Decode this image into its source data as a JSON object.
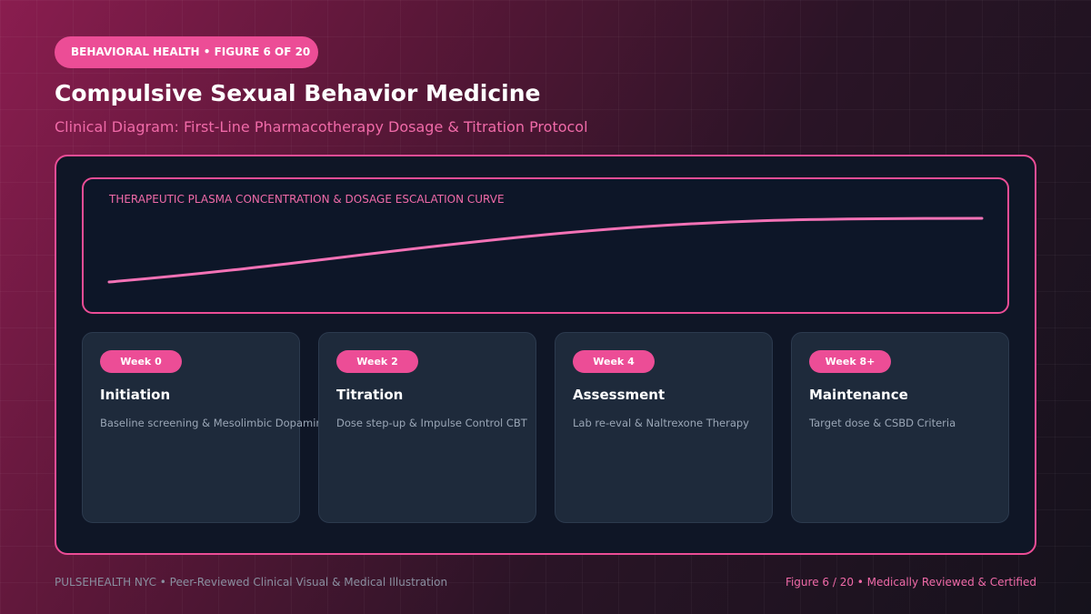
{
  "header": {
    "badge": "BEHAVIORAL HEALTH • FIGURE 6 OF 20",
    "title": "Compulsive Sexual Behavior Medicine",
    "subtitle": "Clinical Diagram: First-Line Pharmacotherapy Dosage & Titration Protocol"
  },
  "curve": {
    "label": "THERAPEUTIC PLASMA CONCENTRATION & DOSAGE ESCALATION CURVE"
  },
  "stages": [
    {
      "week": "Week 0",
      "title": "Initiation",
      "description": "Baseline screening & Mesolimbic Dopamine"
    },
    {
      "week": "Week 2",
      "title": "Titration",
      "description": "Dose step-up & Impulse Control CBT"
    },
    {
      "week": "Week 4",
      "title": "Assessment",
      "description": "Lab re-eval & Naltrexone Therapy"
    },
    {
      "week": "Week 8+",
      "title": "Maintenance",
      "description": "Target dose & CSBD Criteria"
    }
  ],
  "footer": {
    "left": "PULSEHEALTH NYC • Peer-Reviewed Clinical Visual & Medical Illustration",
    "right": "Figure 6 / 20 • Medically Reviewed & Certified"
  }
}
